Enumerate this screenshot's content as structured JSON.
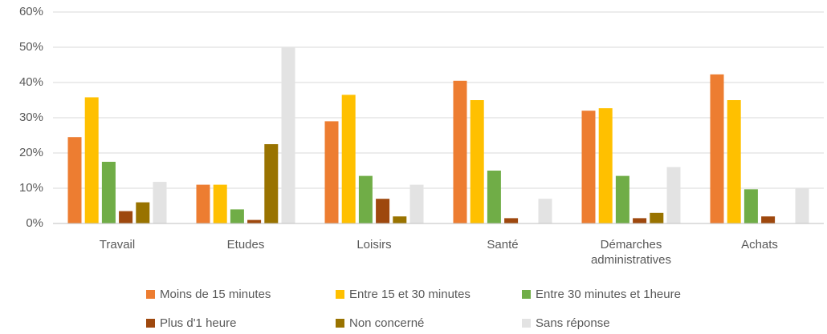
{
  "chart_data": {
    "type": "bar",
    "categories": [
      "Travail",
      "Etudes",
      "Loisirs",
      "Santé",
      "Démarches administratives",
      "Achats"
    ],
    "series": [
      {
        "name": "Moins de 15 minutes",
        "color": "#ED7D31",
        "values": [
          24.5,
          11,
          29,
          40.5,
          32,
          42.3
        ]
      },
      {
        "name": "Entre 15 et 30 minutes",
        "color": "#FFC000",
        "values": [
          35.8,
          11,
          36.5,
          35,
          32.7,
          35
        ]
      },
      {
        "name": "Entre 30 minutes et 1heure",
        "color": "#70AD47",
        "values": [
          17.5,
          4,
          13.5,
          15,
          13.5,
          9.7
        ]
      },
      {
        "name": "Plus d'1 heure",
        "color": "#9E480E",
        "values": [
          3.5,
          1,
          7,
          1.5,
          1.5,
          2
        ]
      },
      {
        "name": "Non concerné",
        "color": "#997300",
        "values": [
          6,
          22.5,
          2,
          0,
          3,
          0
        ]
      },
      {
        "name": "Sans réponse",
        "color": "#E3E3E3",
        "values": [
          11.8,
          50,
          11,
          7,
          16,
          10
        ]
      }
    ],
    "ylim": [
      0,
      60
    ],
    "yticks": [
      {
        "value": 0,
        "label": "0%"
      },
      {
        "value": 10,
        "label": "10%"
      },
      {
        "value": 20,
        "label": "20%"
      },
      {
        "value": 30,
        "label": "30%"
      },
      {
        "value": 40,
        "label": "40%"
      },
      {
        "value": 50,
        "label": "50%"
      },
      {
        "value": 60,
        "label": "60%"
      }
    ],
    "grid": true
  }
}
